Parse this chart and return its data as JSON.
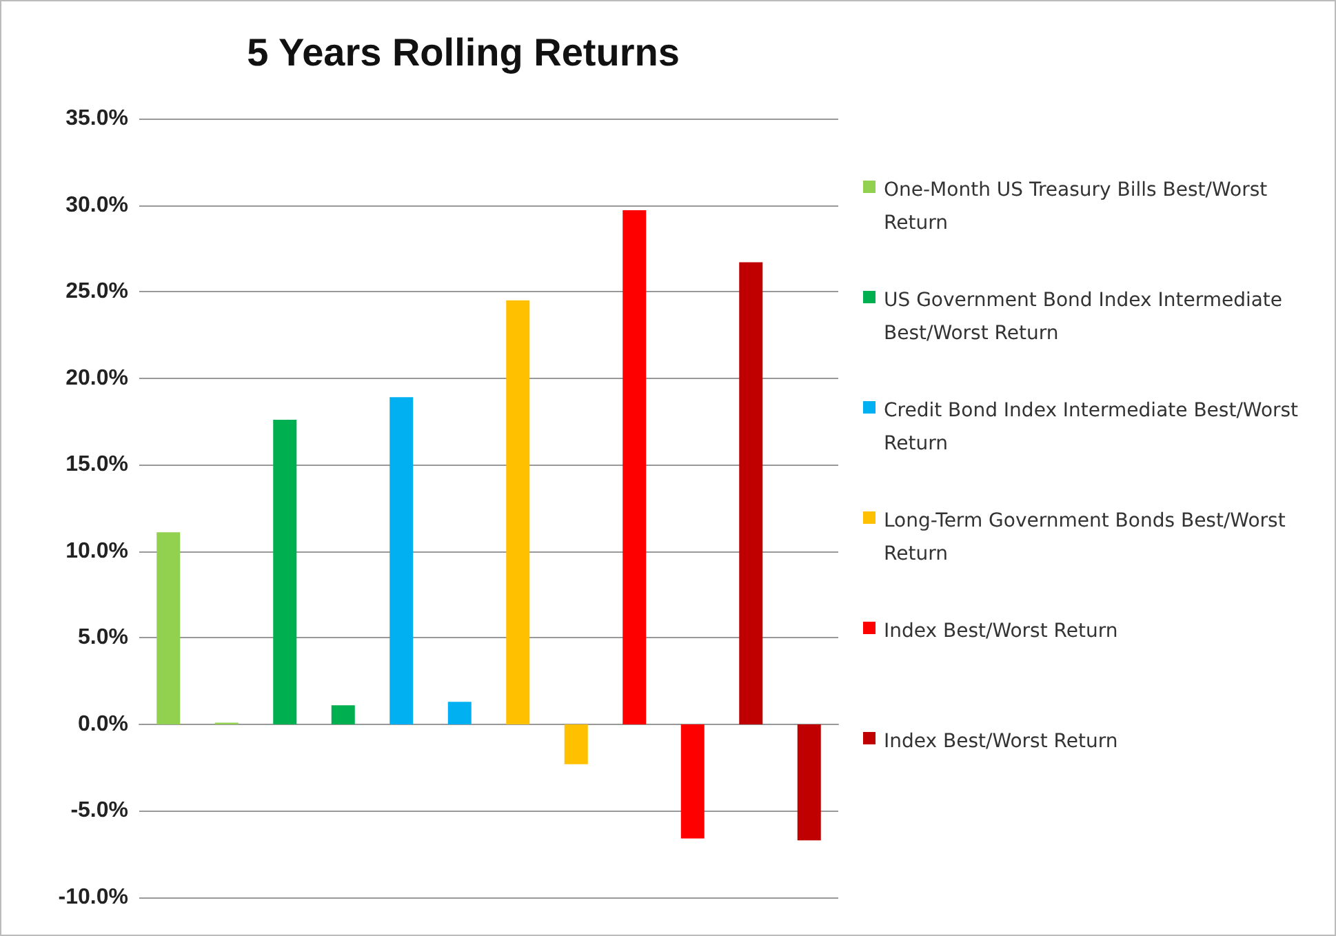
{
  "chart_data": {
    "type": "bar",
    "title": "5 Years Rolling Returns",
    "categories": [
      null,
      null,
      null,
      null,
      null,
      null,
      null,
      null,
      null,
      null,
      null,
      null
    ],
    "series": [
      {
        "name": "One-Month US Treasury Bills Best/Worst Return",
        "color": "#92d050",
        "values": [
          11.1,
          0.1,
          null,
          null,
          null,
          null,
          null,
          null,
          null,
          null,
          null,
          null
        ]
      },
      {
        "name": "US Government Bond Index Intermediate Best/Worst Return",
        "color": "#00b050",
        "values": [
          null,
          null,
          17.6,
          1.1,
          null,
          null,
          null,
          null,
          null,
          null,
          null,
          null
        ]
      },
      {
        "name": "Credit Bond Index Intermediate Best/Worst Return",
        "color": "#00b0f0",
        "values": [
          null,
          null,
          null,
          null,
          18.9,
          1.3,
          null,
          null,
          null,
          null,
          null,
          null
        ]
      },
      {
        "name": "Long-Term Government Bonds Best/Worst Return",
        "color": "#ffc000",
        "values": [
          null,
          null,
          null,
          null,
          null,
          null,
          24.5,
          -2.3,
          null,
          null,
          null,
          null
        ]
      },
      {
        "name": "Index Best/Worst Return",
        "color": "#ff0000",
        "values": [
          null,
          null,
          null,
          null,
          null,
          null,
          null,
          null,
          29.7,
          -6.6,
          null,
          null
        ]
      },
      {
        "name": "Index Best/Worst Return",
        "color": "#c00000",
        "values": [
          null,
          null,
          null,
          null,
          null,
          null,
          null,
          null,
          null,
          null,
          26.7,
          -6.7
        ]
      }
    ],
    "ylim": [
      -10,
      35
    ],
    "yticks": [
      {
        "value": -10,
        "label": "-10.0%"
      },
      {
        "value": -5,
        "label": "-5.0%"
      },
      {
        "value": 0,
        "label": "0.0%"
      },
      {
        "value": 5,
        "label": "5.0%"
      },
      {
        "value": 10,
        "label": "10.0%"
      },
      {
        "value": 15,
        "label": "15.0%"
      },
      {
        "value": 20,
        "label": "20.0%"
      },
      {
        "value": 25,
        "label": "25.0%"
      },
      {
        "value": 30,
        "label": "30.0%"
      },
      {
        "value": 35,
        "label": "35.0%"
      }
    ],
    "grid": "y",
    "legend": "right"
  }
}
